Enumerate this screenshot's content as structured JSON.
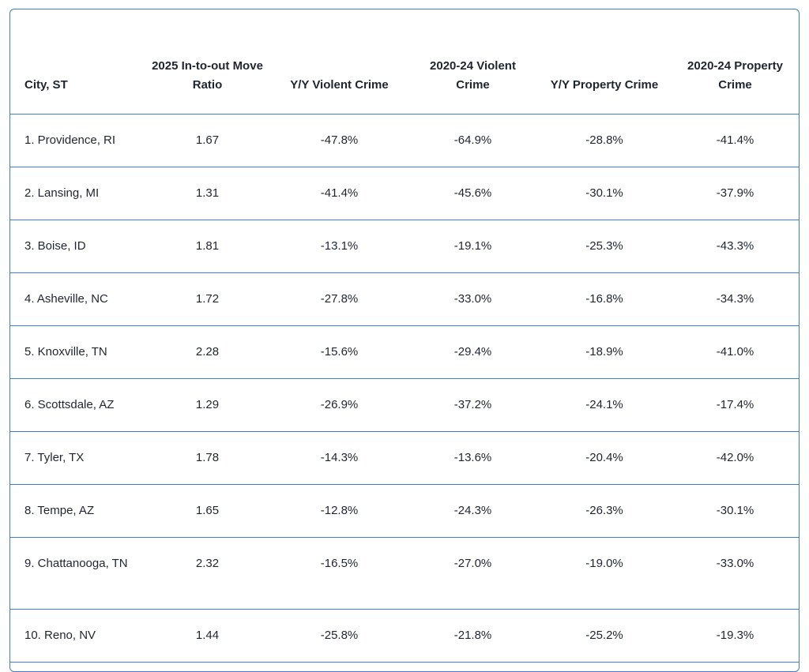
{
  "table": {
    "headers": [
      "City, ST",
      "2025 In-to-out Move Ratio",
      "Y/Y Violent Crime",
      "2020-24 Violent Crime",
      "Y/Y Property Crime",
      "2020-24 Property Crime"
    ],
    "rows": [
      [
        "1. Providence, RI",
        "1.67",
        "-47.8%",
        "-64.9%",
        "-28.8%",
        "-41.4%"
      ],
      [
        "2. Lansing, MI",
        "1.31",
        "-41.4%",
        "-45.6%",
        "-30.1%",
        "-37.9%"
      ],
      [
        "3. Boise, ID",
        "1.81",
        "-13.1%",
        "-19.1%",
        "-25.3%",
        "-43.3%"
      ],
      [
        "4. Asheville, NC",
        "1.72",
        "-27.8%",
        "-33.0%",
        "-16.8%",
        "-34.3%"
      ],
      [
        "5. Knoxville, TN",
        "2.28",
        "-15.6%",
        "-29.4%",
        "-18.9%",
        "-41.0%"
      ],
      [
        "6. Scottsdale, AZ",
        "1.29",
        "-26.9%",
        "-37.2%",
        "-24.1%",
        "-17.4%"
      ],
      [
        "7. Tyler, TX",
        "1.78",
        "-14.3%",
        "-13.6%",
        "-20.4%",
        "-42.0%"
      ],
      [
        "8. Tempe, AZ",
        "1.65",
        "-12.8%",
        "-24.3%",
        "-26.3%",
        "-30.1%"
      ],
      [
        "9. Chattanooga, TN",
        "2.32",
        "-16.5%",
        "-27.0%",
        "-19.0%",
        "-33.0%"
      ],
      [
        "10. Reno, NV",
        "1.44",
        "-25.8%",
        "-21.8%",
        "-25.2%",
        "-19.3%"
      ]
    ]
  },
  "colors": {
    "border": "#3f7fc6",
    "text": "#1f2530"
  }
}
